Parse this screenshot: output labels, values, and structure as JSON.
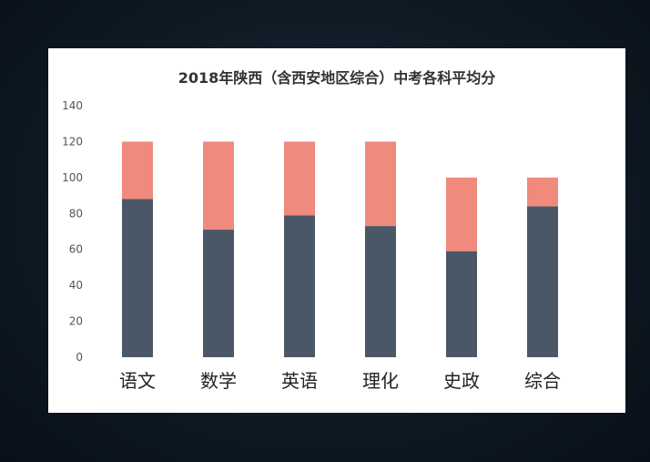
{
  "chart_data": {
    "type": "bar",
    "stacked": true,
    "title": "2018年陕西（含西安地区综合）中考各科平均分",
    "xlabel": "",
    "ylabel": "",
    "ylim": [
      0,
      140
    ],
    "yticks": [
      0,
      20,
      40,
      60,
      80,
      100,
      120,
      140
    ],
    "grid": false,
    "categories": [
      "语文",
      "数学",
      "英语",
      "理化",
      "史政",
      "综合"
    ],
    "series": [
      {
        "values": [
          88,
          71,
          79,
          73,
          59,
          84
        ],
        "color": "#4a5766"
      },
      {
        "values": [
          32,
          49,
          41,
          47,
          41,
          16
        ],
        "color": "#f08a7c"
      }
    ]
  }
}
